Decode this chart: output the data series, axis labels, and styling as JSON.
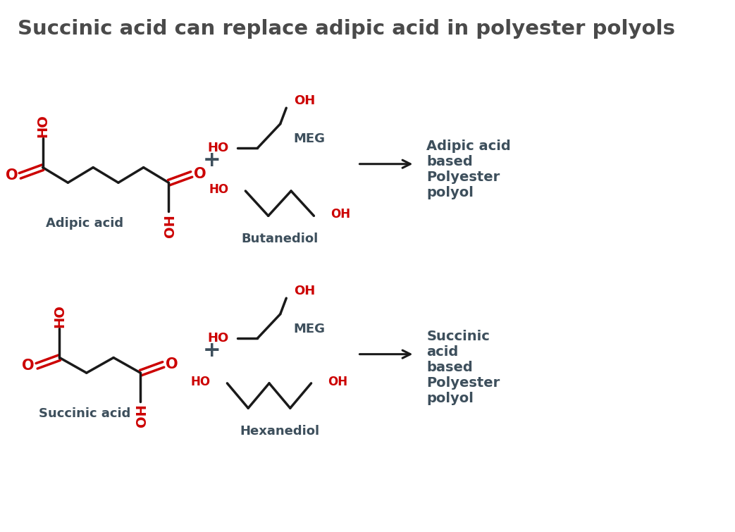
{
  "title": "Succinic acid can replace adipic acid in polyester polyols",
  "title_color": "#4a4a4a",
  "title_fontsize": 21,
  "bg_color": "#ffffff",
  "red_color": "#cc0000",
  "dark_color": "#3d4f5c",
  "black_color": "#1a1a1a",
  "row1": {
    "acid_label": "Adipic acid",
    "diol1_label": "MEG",
    "diol2_label": "Butanediol",
    "product_label": "Adipic acid\nbased\nPolyester\npolyol"
  },
  "row2": {
    "acid_label": "Succinic acid",
    "diol1_label": "MEG",
    "diol2_label": "Hexanediol",
    "product_label": "Succinic\nacid\nbased\nPolyester\npolyol"
  }
}
